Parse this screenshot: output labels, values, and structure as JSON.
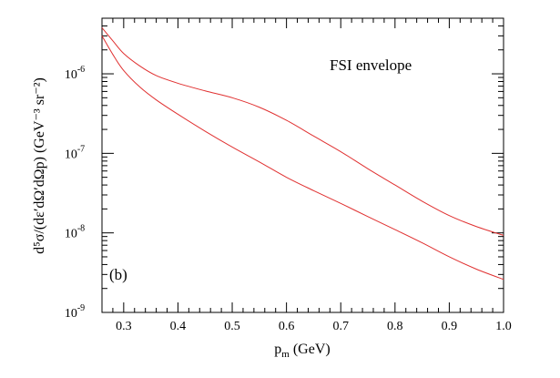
{
  "chart_data": {
    "type": "line",
    "title": "",
    "annotations": [
      "FSI envelope",
      "(b)"
    ],
    "xlabel": {
      "main": "p",
      "sub": "m",
      "unit": " (GeV)"
    },
    "ylabel": "d⁵σ/(dε′dΩ′dΩp) (GeV⁻³ sr⁻²)",
    "xlim": [
      0.26,
      1.0
    ],
    "ylim": [
      1e-09,
      5e-06
    ],
    "yscale": "log",
    "grid": false,
    "x_ticks": [
      0.3,
      0.4,
      0.5,
      0.6,
      0.7,
      0.8,
      0.9,
      1.0
    ],
    "x_tick_labels": [
      "0.3",
      "0.4",
      "0.5",
      "0.6",
      "0.7",
      "0.8",
      "0.9",
      "1.0"
    ],
    "y_ticks": [
      {
        "value": 1e-09,
        "base": "10",
        "exp": "-9"
      },
      {
        "value": 1e-08,
        "base": "10",
        "exp": "-8"
      },
      {
        "value": 1e-07,
        "base": "10",
        "exp": "-7"
      },
      {
        "value": 1e-06,
        "base": "10",
        "exp": "-6"
      }
    ],
    "line_color": "#e03030",
    "series": [
      {
        "x": [
          0.26,
          0.28,
          0.3,
          0.33,
          0.36,
          0.4,
          0.45,
          0.5,
          0.55,
          0.6,
          0.65,
          0.7,
          0.75,
          0.8,
          0.85,
          0.9,
          0.95,
          1.0
        ],
        "y": [
          3.8e-06,
          2.6e-06,
          1.8e-06,
          1.25e-06,
          9.5e-07,
          7.6e-07,
          6.1e-07,
          5e-07,
          3.8e-07,
          2.6e-07,
          1.65e-07,
          1.05e-07,
          6.4e-08,
          4e-08,
          2.5e-08,
          1.65e-08,
          1.2e-08,
          9.3e-09
        ]
      },
      {
        "x": [
          0.26,
          0.28,
          0.3,
          0.33,
          0.36,
          0.4,
          0.45,
          0.5,
          0.55,
          0.6,
          0.65,
          0.7,
          0.75,
          0.8,
          0.85,
          0.9,
          0.95,
          1.0
        ],
        "y": [
          3e-06,
          1.75e-06,
          1.1e-06,
          6.8e-07,
          4.7e-07,
          3.1e-07,
          1.9e-07,
          1.2e-07,
          7.8e-08,
          5e-08,
          3.4e-08,
          2.35e-08,
          1.6e-08,
          1.1e-08,
          7.5e-09,
          5e-09,
          3.5e-09,
          2.6e-09
        ]
      }
    ]
  }
}
